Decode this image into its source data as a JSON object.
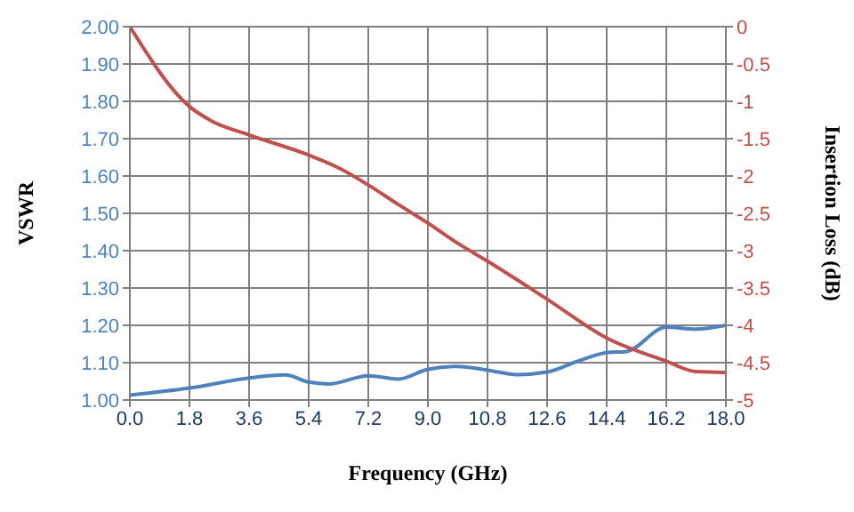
{
  "chart_data": {
    "type": "line",
    "xlabel": "Frequency (GHz)",
    "ylabel": "VSWR",
    "y2label": "Insertion Loss (dB)",
    "xlim": [
      0,
      18
    ],
    "xticks": [
      {
        "value": 0,
        "label": "0.0"
      },
      {
        "value": 1.8,
        "label": "1.8"
      },
      {
        "value": 3.6,
        "label": "3.6"
      },
      {
        "value": 5.4,
        "label": "5.4"
      },
      {
        "value": 7.2,
        "label": "7.2"
      },
      {
        "value": 9,
        "label": "9.0"
      },
      {
        "value": 10.8,
        "label": "10.8"
      },
      {
        "value": 12.6,
        "label": "12.6"
      },
      {
        "value": 14.4,
        "label": "14.4"
      },
      {
        "value": 16.2,
        "label": "16.2"
      },
      {
        "value": 18,
        "label": "18.0"
      }
    ],
    "ylim": [
      1,
      2
    ],
    "yticks": [
      {
        "value": 1,
        "label": "1.00"
      },
      {
        "value": 1.1,
        "label": "1.10"
      },
      {
        "value": 1.2,
        "label": "1.20"
      },
      {
        "value": 1.3,
        "label": "1.30"
      },
      {
        "value": 1.4,
        "label": "1.40"
      },
      {
        "value": 1.5,
        "label": "1.50"
      },
      {
        "value": 1.6,
        "label": "1.60"
      },
      {
        "value": 1.7,
        "label": "1.70"
      },
      {
        "value": 1.8,
        "label": "1.80"
      },
      {
        "value": 1.9,
        "label": "1.90"
      },
      {
        "value": 2,
        "label": "2.00"
      }
    ],
    "y2lim": [
      -5,
      0
    ],
    "y2ticks": [
      -5,
      -4.5,
      -4,
      -3.5,
      -3,
      -2.5,
      -2,
      -1.5,
      -1,
      -0.5,
      0
    ],
    "grid": true,
    "marker": "none",
    "line_style": "solid",
    "series": [
      {
        "color": "#4f81bd",
        "x": [
          0,
          1.8,
          3.6,
          4.7,
          5.4,
          6,
          7.2,
          8.1,
          9,
          9.9,
          10.8,
          11.7,
          12.6,
          13.5,
          14.4,
          15,
          16.2,
          17.1,
          18
        ],
        "values": [
          1.013,
          1.032,
          1.059,
          1.067,
          1.048,
          1.043,
          1.065,
          1.056,
          1.082,
          1.09,
          1.08,
          1.068,
          1.075,
          1.103,
          1.127,
          1.13,
          1.195,
          1.19,
          1.2
        ]
      },
      {
        "color": "#c0504d",
        "axis": "y2",
        "x": [
          0,
          1.8,
          2.5,
          3.6,
          5.4,
          6.3,
          7.2,
          8.1,
          9,
          9.9,
          10.8,
          12.6,
          14.4,
          16.2,
          17.1,
          18
        ],
        "values": [
          0,
          -1.07,
          -1.27,
          -1.45,
          -1.72,
          -1.89,
          -2.12,
          -2.38,
          -2.63,
          -2.9,
          -3.14,
          -3.65,
          -4.17,
          -4.48,
          -4.62,
          -4.63
        ]
      }
    ]
  }
}
